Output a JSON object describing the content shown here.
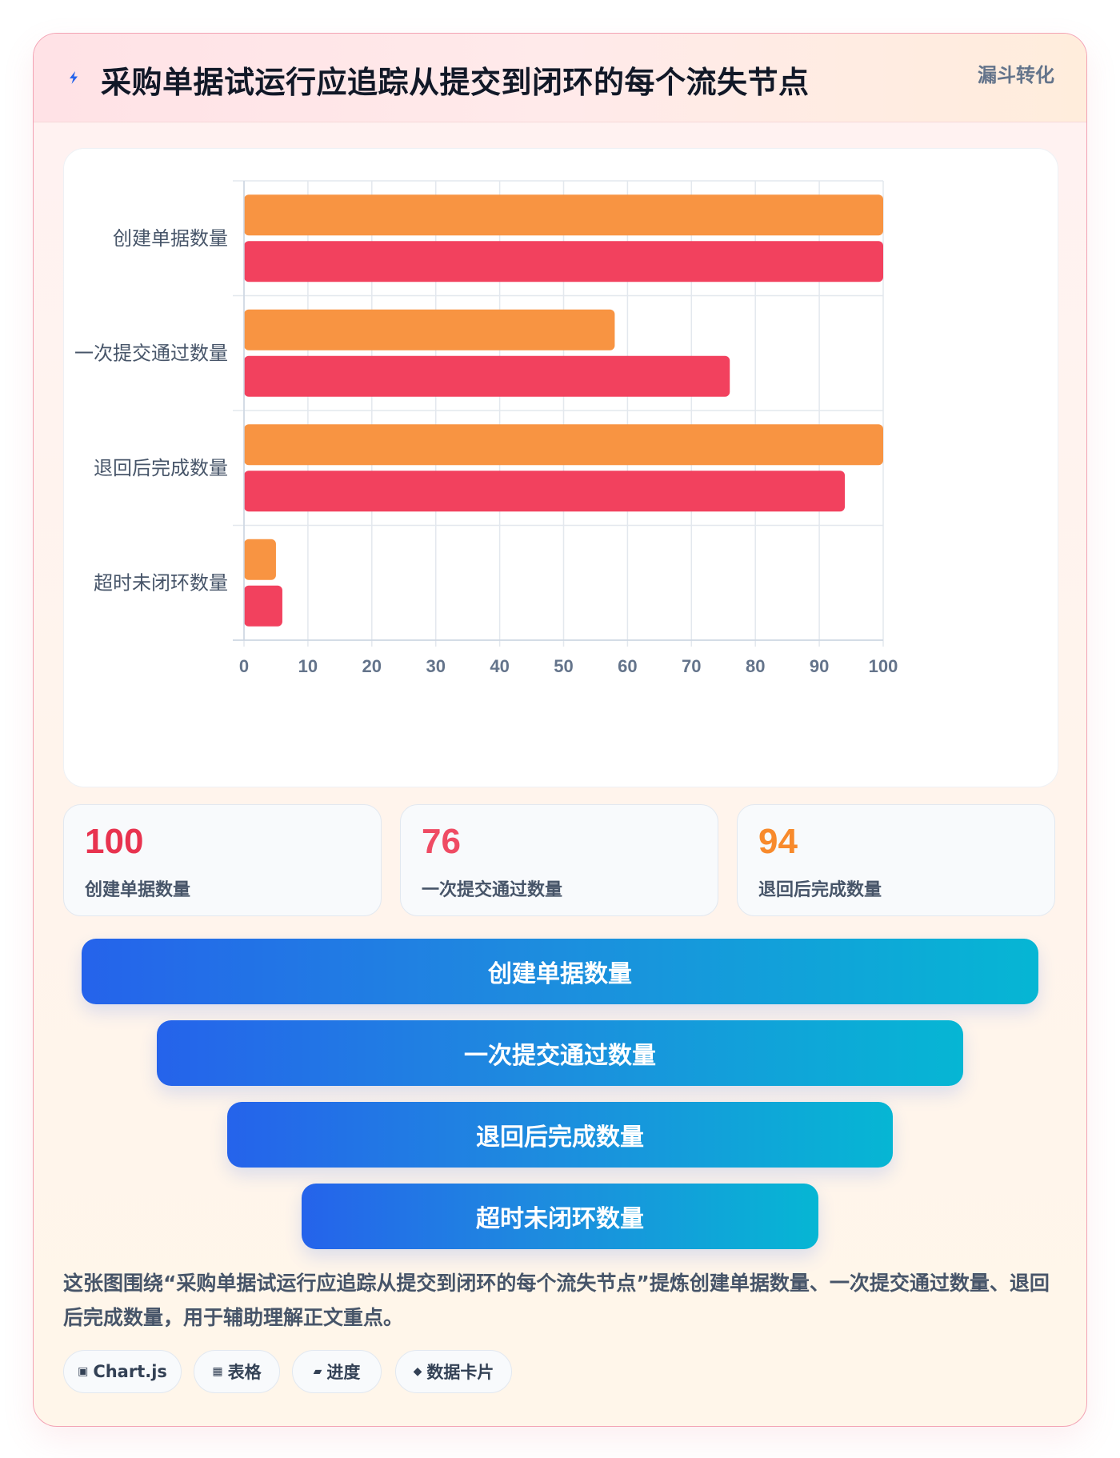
{
  "header": {
    "title": "采购单据试运行应追踪从提交到闭环的每个流失节点",
    "tag": "漏斗转化",
    "icon": "lightning-icon"
  },
  "chart_data": {
    "type": "bar",
    "orientation": "horizontal",
    "categories": [
      "创建单据数量",
      "一次提交通过数量",
      "退回后完成数量",
      "超时未闭环数量"
    ],
    "series": [
      {
        "color": "#f89442",
        "values": [
          100,
          58,
          100,
          5
        ]
      },
      {
        "color": "#f2415e",
        "values": [
          100,
          76,
          94,
          6
        ]
      }
    ],
    "xlim": [
      0,
      100
    ],
    "xticks": [
      0,
      10,
      20,
      30,
      40,
      50,
      60,
      70,
      80,
      90,
      100
    ],
    "grid": true,
    "legend": "none"
  },
  "kpis": [
    {
      "value": "100",
      "label": "创建单据数量",
      "color": "#e8334f"
    },
    {
      "value": "76",
      "label": "一次提交通过数量",
      "color": "#ef4b63"
    },
    {
      "value": "94",
      "label": "退回后完成数量",
      "color": "#f88a2c"
    }
  ],
  "funnel": [
    {
      "label": "创建单据数量"
    },
    {
      "label": "一次提交通过数量"
    },
    {
      "label": "退回后完成数量"
    },
    {
      "label": "超时未闭环数量"
    }
  ],
  "description": "这张图围绕“采购单据试运行应追踪从提交到闭环的每个流失节点”提炼创建单据数量、一次提交通过数量、退回后完成数量，用于辅助理解正文重点。",
  "chips": [
    {
      "icon": "▣",
      "label": "Chart.js"
    },
    {
      "icon": "▦",
      "label": "表格"
    },
    {
      "icon": "▰",
      "label": "进度"
    },
    {
      "icon": "◆",
      "label": "数据卡片"
    }
  ]
}
